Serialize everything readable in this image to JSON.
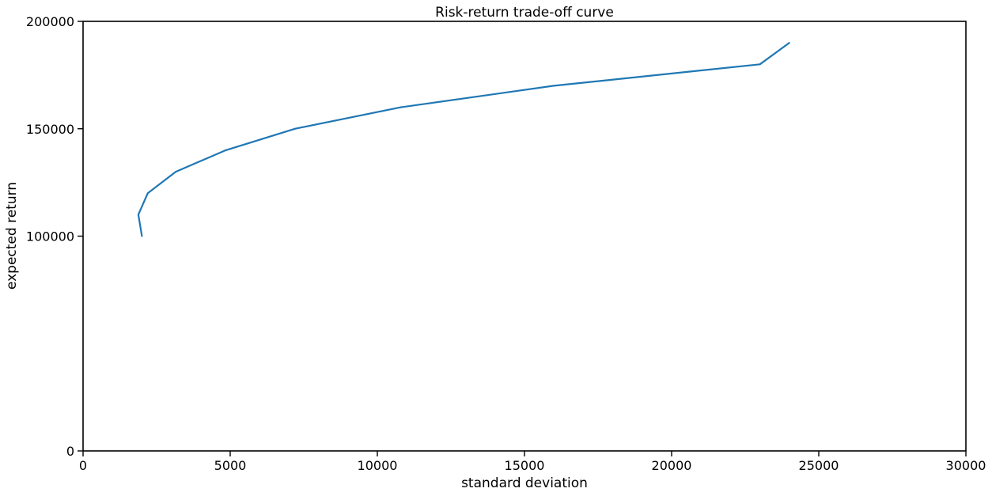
{
  "chart_data": {
    "type": "line",
    "title": "Risk-return trade-off curve",
    "xlabel": "standard deviation",
    "ylabel": "expected return",
    "xlim": [
      0,
      30000
    ],
    "ylim": [
      0,
      200000
    ],
    "xticks": [
      0,
      5000,
      10000,
      15000,
      20000,
      25000,
      30000
    ],
    "xtick_labels": [
      "0",
      "5000",
      "10000",
      "15000",
      "20000",
      "25000",
      "30000"
    ],
    "yticks": [
      0,
      100000,
      150000,
      200000
    ],
    "ytick_labels": [
      "0",
      "100000",
      "150000",
      "200000"
    ],
    "grid": false,
    "series": [
      {
        "color": "#1f77b4",
        "x": [
          2000,
          1880,
          2200,
          3150,
          4850,
          7200,
          10800,
          16000,
          23000,
          24000
        ],
        "y": [
          100000,
          110000,
          120000,
          130000,
          140000,
          150000,
          160000,
          170000,
          180000,
          190000
        ]
      }
    ]
  }
}
